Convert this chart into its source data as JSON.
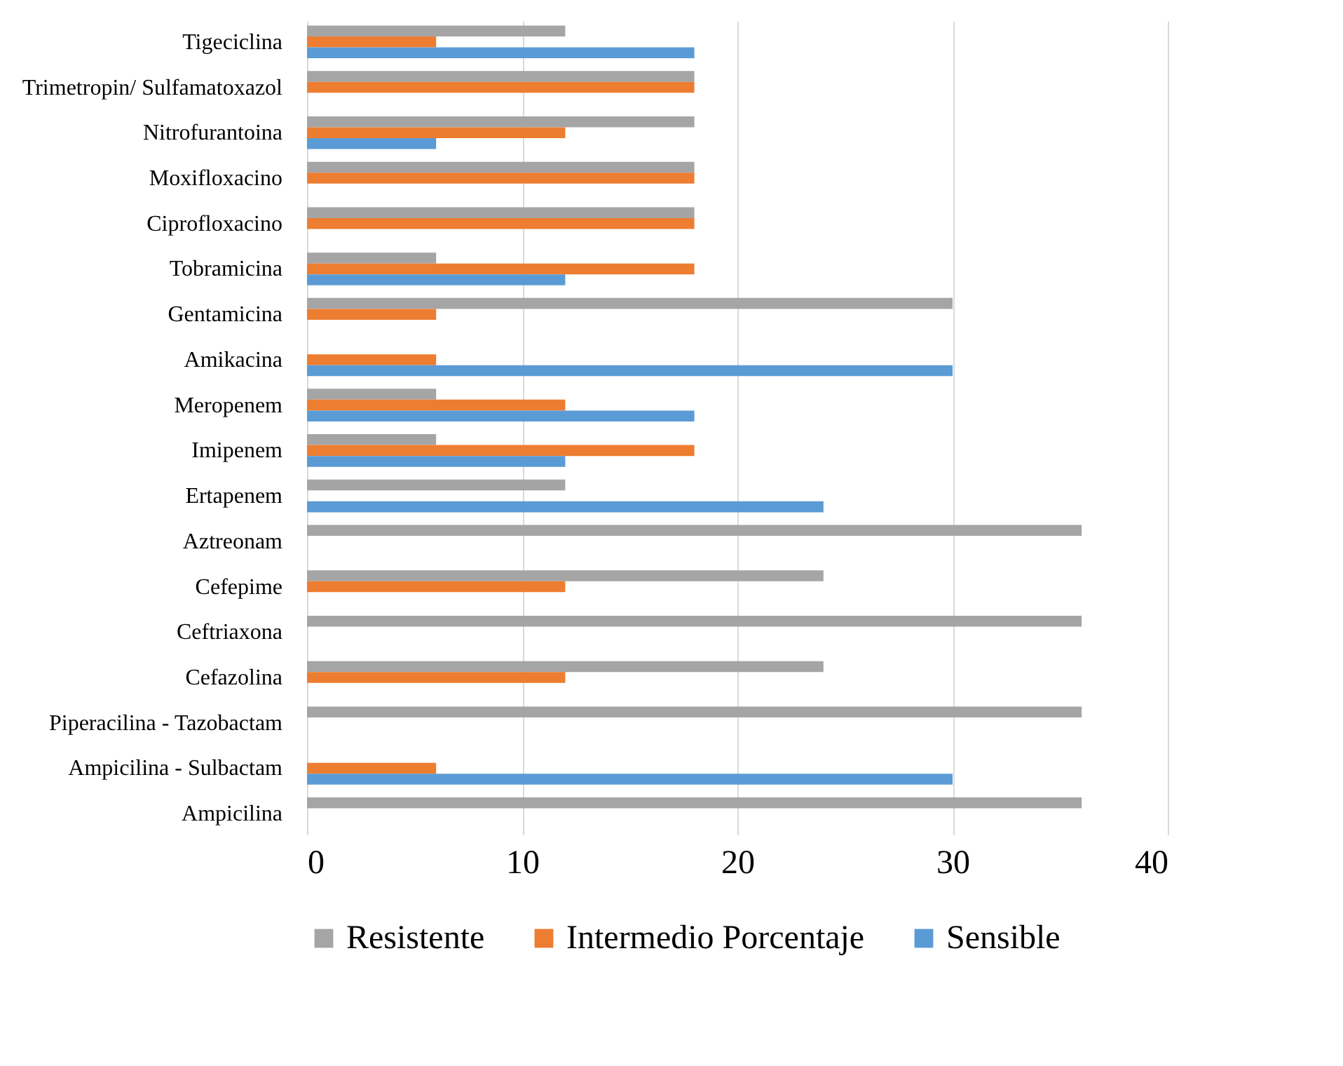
{
  "chart_data": {
    "type": "bar",
    "orientation": "horizontal",
    "categories": [
      "Tigeciclina",
      "Trimetropin/ Sulfamatoxazol",
      "Nitrofurantoina",
      "Moxifloxacino",
      "Ciprofloxacino",
      "Tobramicina",
      "Gentamicina",
      "Amikacina",
      "Meropenem",
      "Imipenem",
      "Ertapenem",
      "Aztreonam",
      "Cefepime",
      "Ceftriaxona",
      "Cefazolina",
      "Piperacilina - Tazobactam",
      "Ampicilina - Sulbactam",
      "Ampicilina"
    ],
    "series": [
      {
        "name": "Resistente",
        "color": "#a5a5a5",
        "values": [
          12,
          18,
          18,
          18,
          18,
          6,
          30,
          null,
          6,
          6,
          12,
          36,
          24,
          36,
          24,
          36,
          null,
          36
        ]
      },
      {
        "name": "Intermedio Porcentaje",
        "color": "#ed7d31",
        "values": [
          6,
          18,
          12,
          18,
          18,
          18,
          6,
          6,
          12,
          18,
          null,
          null,
          12,
          null,
          12,
          null,
          6,
          null
        ]
      },
      {
        "name": "Sensible",
        "color": "#5b9bd5",
        "values": [
          18,
          null,
          6,
          null,
          null,
          12,
          null,
          30,
          18,
          12,
          24,
          null,
          null,
          null,
          null,
          null,
          30,
          null
        ]
      }
    ],
    "xlim": [
      0,
      40
    ],
    "xticks": [
      0,
      10,
      20,
      30,
      40
    ],
    "grid": "x",
    "legend": "bottom"
  }
}
